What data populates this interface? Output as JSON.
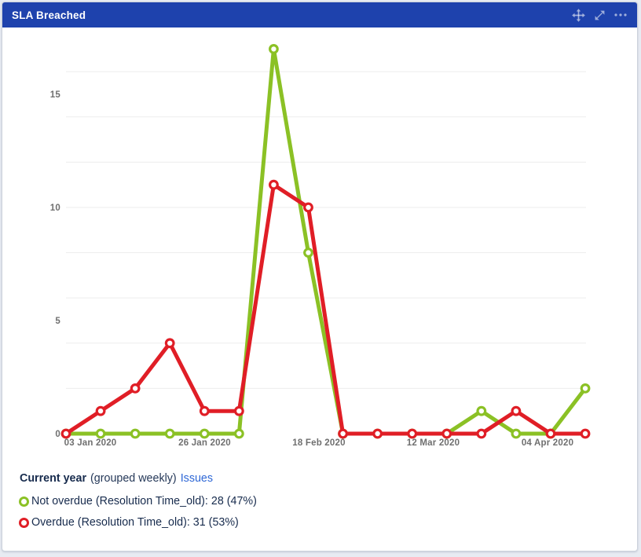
{
  "header": {
    "title": "SLA Breached",
    "background": "#1e42ad",
    "icon_color": "rgba(255,255,255,0.58)",
    "icons": [
      {
        "name": "move-icon"
      },
      {
        "name": "expand-icon"
      },
      {
        "name": "more-icon"
      }
    ]
  },
  "legend": {
    "context_bold": "Current year",
    "context_normal": "(grouped weekly)",
    "link": "Issues",
    "link_color": "#2e67d6",
    "text_color": "#172b4d"
  },
  "chart_data": {
    "type": "line",
    "title": "SLA Breached",
    "x_tick_labels": [
      "03 Jan 2020",
      "26 Jan 2020",
      "18 Feb 2020",
      "12 Mar 2020",
      "04 Apr 2020"
    ],
    "y_ticks": [
      0,
      5,
      10,
      15
    ],
    "y_tick_labels": [
      "0",
      "5",
      "10",
      "15"
    ],
    "ylim": [
      0,
      17.6
    ],
    "grid_values": [
      2,
      4,
      6,
      8,
      10,
      12,
      14,
      16
    ],
    "grid": true,
    "grid_color": "#ededed",
    "num_points": 16,
    "legend_position": "bottom-left",
    "series": [
      {
        "name": "Not overdue (Resolution Time_old)",
        "color": "#8bc125",
        "values": [
          0,
          0,
          0,
          0,
          0,
          0,
          17,
          8,
          0,
          0,
          0,
          0,
          1,
          0,
          0,
          2
        ],
        "total": 28,
        "percent": "47%",
        "legend": "Not overdue (Resolution Time_old): 28 (47%)"
      },
      {
        "name": "Overdue (Resolution Time_old)",
        "color": "#e01e26",
        "values": [
          0,
          1,
          2,
          4,
          1,
          1,
          11,
          10,
          0,
          0,
          0,
          0,
          0,
          1,
          0,
          0
        ],
        "total": 31,
        "percent": "53%",
        "legend": "Overdue (Resolution Time_old): 31 (53%)"
      }
    ]
  }
}
